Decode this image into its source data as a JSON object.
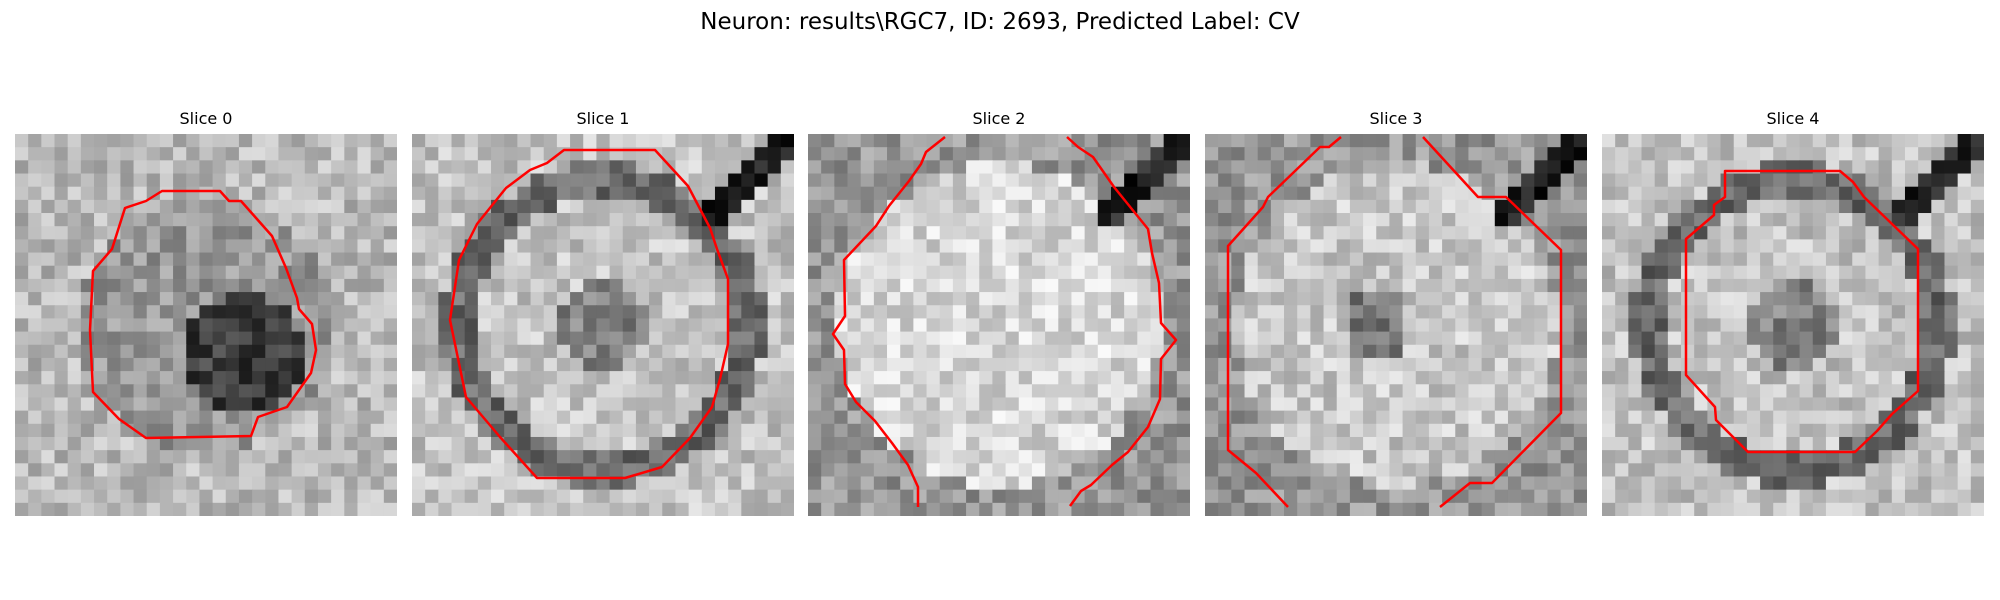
{
  "figure": {
    "title": "Neuron: results\\RGC7, ID: 2693, Predicted Label: CV"
  },
  "contour_color": "#ff0000",
  "slices": [
    {
      "title": "Slice 0",
      "shade": "dark-core"
    },
    {
      "title": "Slice 1",
      "shade": "ring"
    },
    {
      "title": "Slice 2",
      "shade": "bright"
    },
    {
      "title": "Slice 3",
      "shade": "mixed"
    },
    {
      "title": "Slice 4",
      "shade": "ring"
    }
  ]
}
